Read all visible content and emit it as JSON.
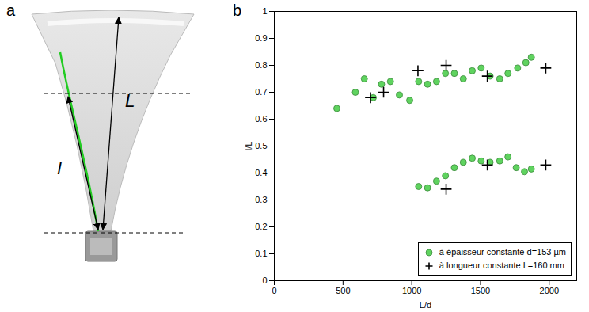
{
  "diagram": {
    "letter": "a",
    "length_labels": [
      "l",
      "L"
    ]
  },
  "chart_data": {
    "type": "scatter",
    "title": "b",
    "x_label": "L/d",
    "y_label": "l/L",
    "xlim": [
      0,
      2200
    ],
    "xticks": [
      0,
      500,
      1000,
      1500,
      2000
    ],
    "ylim": [
      0,
      1
    ],
    "yticks": [
      0,
      0.1,
      0.2,
      0.3,
      0.4,
      0.5,
      0.6,
      0.7,
      0.8,
      0.9,
      1
    ],
    "grid": false,
    "legend": "lower right",
    "series": [
      {
        "name": "à épaisseur constante d=153 µm",
        "color": "#5fd35f",
        "marker": "o",
        "x": [
          455,
          590,
          655,
          720,
          780,
          845,
          910,
          985,
          1050,
          1115,
          1180,
          1245,
          1310,
          1375,
          1440,
          1505,
          1570,
          1640,
          1700,
          1770,
          1830,
          1870,
          1050,
          1115,
          1180,
          1245,
          1310,
          1375,
          1440,
          1505,
          1570,
          1640,
          1700,
          1760,
          1820,
          1870
        ],
        "values": [
          0.64,
          0.7,
          0.75,
          0.68,
          0.73,
          0.74,
          0.69,
          0.67,
          0.74,
          0.73,
          0.74,
          0.77,
          0.77,
          0.75,
          0.78,
          0.79,
          0.76,
          0.75,
          0.77,
          0.79,
          0.81,
          0.83,
          0.35,
          0.345,
          0.37,
          0.39,
          0.42,
          0.44,
          0.455,
          0.445,
          0.44,
          0.445,
          0.46,
          0.42,
          0.405,
          0.415
        ]
      },
      {
        "name": "à longueur constante L=160 mm",
        "color": "#000000",
        "marker": "+",
        "x": [
          700,
          795,
          1045,
          1250,
          1550,
          1975,
          1250,
          1550,
          1975
        ],
        "values": [
          0.68,
          0.7,
          0.78,
          0.8,
          0.76,
          0.79,
          0.34,
          0.43,
          0.43
        ]
      }
    ]
  }
}
